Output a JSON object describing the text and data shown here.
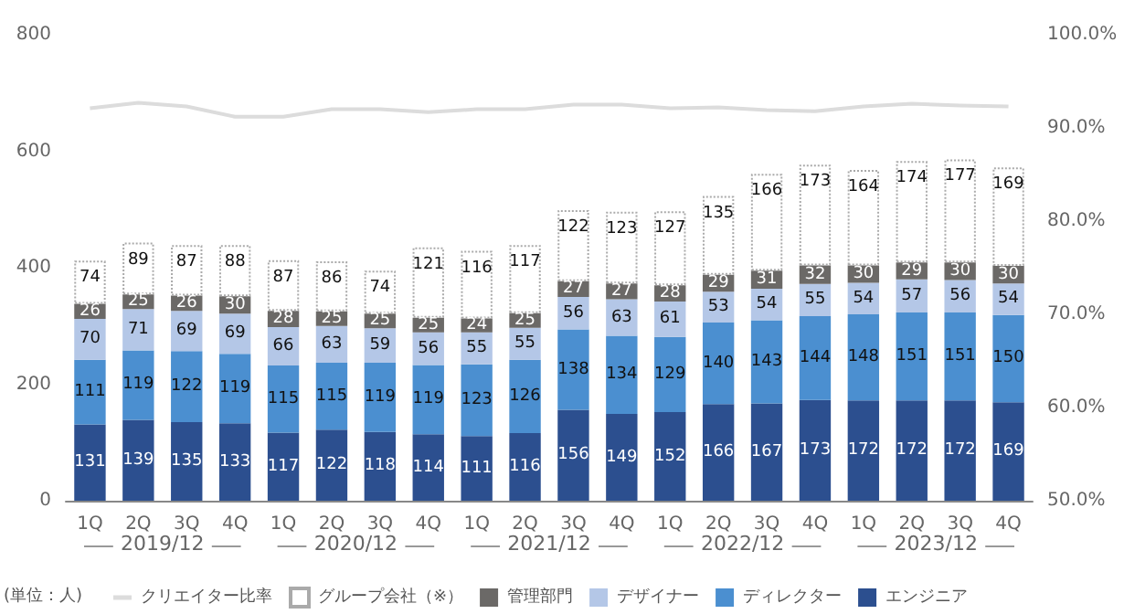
{
  "chart_data": {
    "type": "bar",
    "stacked": true,
    "grid": false,
    "legend": "bottom",
    "categories": [
      "1Q",
      "2Q",
      "3Q",
      "4Q",
      "1Q",
      "2Q",
      "3Q",
      "4Q",
      "1Q",
      "2Q",
      "3Q",
      "4Q",
      "1Q",
      "2Q",
      "3Q",
      "4Q",
      "1Q",
      "2Q",
      "3Q",
      "4Q"
    ],
    "annotations": [
      "(単位：人)",
      "2019/12",
      "2020/12",
      "2021/12",
      "2022/12",
      "2023/12"
    ],
    "ylim": [
      0,
      800
    ],
    "yticks": [
      0,
      200,
      400,
      600,
      800
    ],
    "y2lim": [
      50,
      100
    ],
    "y2ticks": [
      {
        "value": 50,
        "label": "50.0%"
      },
      {
        "value": 60,
        "label": "60.0%"
      },
      {
        "value": 70,
        "label": "70.0%"
      },
      {
        "value": 80,
        "label": "80.0%"
      },
      {
        "value": 90,
        "label": "90.0%"
      },
      {
        "value": 100,
        "label": "100.0%"
      }
    ],
    "series": [
      {
        "name": "エンジニア",
        "color": "#2c4f8f",
        "data_labels": true,
        "values": [
          131,
          139,
          135,
          133,
          117,
          122,
          118,
          114,
          111,
          116,
          156,
          149,
          152,
          166,
          167,
          173,
          172,
          172,
          172,
          169
        ]
      },
      {
        "name": "ディレクター",
        "color": "#4b8fd0",
        "data_labels": true,
        "values": [
          111,
          119,
          122,
          119,
          115,
          115,
          119,
          119,
          123,
          126,
          138,
          134,
          129,
          140,
          143,
          144,
          148,
          151,
          151,
          150
        ]
      },
      {
        "name": "デザイナー",
        "color": "#b4c7e7",
        "data_labels": true,
        "values": [
          70,
          71,
          69,
          69,
          66,
          63,
          59,
          56,
          55,
          55,
          56,
          63,
          61,
          53,
          54,
          55,
          54,
          57,
          56,
          54
        ]
      },
      {
        "name": "管理部門",
        "color": "#6b6967",
        "data_labels": true,
        "values": [
          26,
          25,
          26,
          30,
          28,
          25,
          25,
          25,
          24,
          25,
          27,
          27,
          28,
          29,
          31,
          32,
          30,
          29,
          30,
          30
        ]
      },
      {
        "name": "グループ会社（※）",
        "color": "#ffffff",
        "line_style": "dotted",
        "data_labels": true,
        "values": [
          74,
          89,
          87,
          88,
          87,
          86,
          74,
          121,
          116,
          117,
          122,
          123,
          127,
          135,
          166,
          173,
          164,
          174,
          177,
          169
        ]
      },
      {
        "name": "クリエイター比率",
        "type": "line",
        "axis": "y2",
        "marker": "none",
        "color": "#dcdcdc",
        "values": [
          92.1,
          92.7,
          92.3,
          91.2,
          91.2,
          92.0,
          92.0,
          91.7,
          92.0,
          92.0,
          92.5,
          92.5,
          92.1,
          92.2,
          91.9,
          91.8,
          92.3,
          92.6,
          92.4,
          92.3
        ]
      }
    ]
  }
}
